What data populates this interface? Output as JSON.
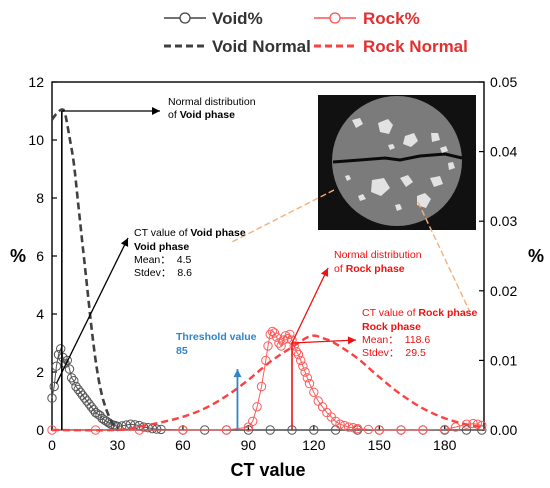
{
  "chart_data": {
    "type": "line",
    "xlabel": "CT value",
    "ylabel_left": "%",
    "ylabel_right": "%",
    "xlim": [
      0,
      198
    ],
    "ylim_left": [
      0,
      12
    ],
    "ylim_right": [
      0,
      0.05
    ],
    "x_ticks": [
      "0",
      "30",
      "60",
      "90",
      "120",
      "150",
      "180"
    ],
    "y_ticks_left": [
      "0",
      "2",
      "4",
      "6",
      "8",
      "10",
      "12"
    ],
    "y_ticks_right": [
      "0.00",
      "0.01",
      "0.02",
      "0.03",
      "0.04",
      "0.05"
    ],
    "grid": false,
    "legend_position": "top",
    "colors": {
      "void": "#404040",
      "rock": "#ff4040",
      "rock_text": "#ee1111",
      "threshold": "#2e86c8"
    },
    "legend": [
      {
        "key": "void_pct",
        "name": "Void%",
        "style": "line-marker"
      },
      {
        "key": "rock_pct",
        "name": "Rock%",
        "style": "line-marker"
      },
      {
        "key": "void_normal",
        "name": "Void Normal",
        "style": "dashed"
      },
      {
        "key": "rock_normal",
        "name": "Rock Normal",
        "style": "dashed"
      }
    ],
    "series": [
      {
        "name": "Void%",
        "axis": "left",
        "x": [
          0,
          1,
          2,
          3,
          4,
          5,
          6,
          7,
          8,
          9,
          10,
          11,
          12,
          13,
          14,
          15,
          16,
          17,
          18,
          19,
          20,
          21,
          22,
          23,
          24,
          25,
          26,
          27,
          28,
          29,
          30,
          32,
          34,
          36,
          38,
          40,
          42,
          44,
          46,
          48,
          50,
          60,
          70,
          80,
          90,
          100,
          110,
          120,
          130,
          140,
          150,
          160,
          170,
          180,
          190,
          197
        ],
        "y": [
          1.1,
          1.5,
          2.2,
          2.6,
          2.8,
          2.5,
          2.3,
          2.4,
          2.1,
          1.8,
          1.7,
          1.5,
          1.4,
          1.3,
          1.2,
          1.1,
          1.0,
          0.9,
          0.8,
          0.7,
          0.6,
          0.55,
          0.5,
          0.4,
          0.35,
          0.3,
          0.25,
          0.2,
          0.17,
          0.15,
          0.12,
          0.14,
          0.17,
          0.2,
          0.18,
          0.15,
          0.1,
          0.08,
          0.05,
          0.03,
          0.02,
          0,
          0,
          0,
          0,
          0,
          0,
          0,
          0,
          0,
          0,
          0,
          0,
          0,
          0,
          0
        ]
      },
      {
        "name": "Rock%",
        "axis": "left",
        "x": [
          0,
          20,
          40,
          60,
          80,
          90,
          92,
          94,
          96,
          98,
          99,
          100,
          101,
          102,
          103,
          104,
          105,
          106,
          107,
          108,
          109,
          110,
          111,
          112,
          113,
          114,
          115,
          116,
          117,
          118,
          120,
          122,
          124,
          126,
          128,
          130,
          132,
          134,
          136,
          138,
          140,
          145,
          150,
          160,
          170,
          180,
          185,
          190,
          193,
          195,
          197
        ],
        "y": [
          0,
          0,
          0,
          0,
          0,
          0.1,
          0.3,
          0.8,
          1.5,
          2.4,
          2.9,
          3.3,
          3.4,
          3.35,
          3.2,
          3.0,
          2.9,
          3.1,
          3.25,
          3.15,
          3.3,
          3.1,
          2.9,
          2.7,
          2.6,
          2.4,
          2.2,
          2.0,
          1.8,
          1.6,
          1.3,
          1.0,
          0.8,
          0.6,
          0.45,
          0.3,
          0.2,
          0.15,
          0.1,
          0.08,
          0.05,
          0.02,
          0,
          0,
          0,
          0.02,
          0.1,
          0.2,
          0.22,
          0.2,
          0.15
        ]
      },
      {
        "name": "Void Normal",
        "axis": "left",
        "mean": 4.5,
        "stdev": 8.6,
        "x": [
          0,
          2,
          4.5,
          6,
          8,
          10,
          12,
          14,
          16,
          18,
          20,
          22,
          24,
          26,
          28,
          30
        ],
        "y": [
          10.7,
          10.9,
          11.05,
          10.9,
          10.1,
          9.2,
          7.8,
          6.4,
          5.0,
          3.6,
          2.4,
          1.5,
          0.9,
          0.5,
          0.2,
          0.05
        ]
      },
      {
        "name": "Rock Normal",
        "axis": "right",
        "mean": 118.6,
        "stdev": 29.5,
        "x": [
          0,
          30,
          40,
          50,
          60,
          70,
          80,
          90,
          100,
          110,
          118.6,
          125,
          130,
          140,
          150,
          160,
          170,
          180,
          190,
          198
        ],
        "y": [
          0,
          0,
          0.0005,
          0.0011,
          0.0019,
          0.0031,
          0.0049,
          0.0072,
          0.0098,
          0.0119,
          0.0135,
          0.0131,
          0.0124,
          0.0103,
          0.0076,
          0.0051,
          0.0031,
          0.0017,
          0.0008,
          0.0004
        ]
      }
    ],
    "markers": {
      "void_peak_x": 4.5,
      "void_peak_y": 11.0,
      "rock_peak_x": 110,
      "rock_peak_y": 3.0,
      "threshold_x": 85,
      "threshold_y": 2.1
    },
    "annotations": {
      "void_normal": {
        "line1": "Normal distribution",
        "line2_prefix": "of ",
        "line2_bold": "Void phase"
      },
      "void_ct": {
        "line1_prefix": "CT value  of ",
        "line1_bold": "Void phase",
        "line2_bold": "Void phase",
        "mean_label": "Mean：",
        "mean_value": "4.5",
        "stdev_label": "Stdev：",
        "stdev_value": "8.6"
      },
      "rock_normal": {
        "line1": "Normal distribution",
        "line2_prefix": "of ",
        "line2_bold": "Rock phase"
      },
      "rock_ct": {
        "line1_prefix": "CT value  of ",
        "line1_bold": "Rock phase",
        "line2_bold": "Rock phase",
        "mean_label": "Mean：",
        "mean_value": "118.6",
        "stdev_label": "Stdev：",
        "stdev_value": "29.5"
      },
      "threshold": {
        "line1": "Threshold value",
        "line2": "85"
      }
    }
  }
}
